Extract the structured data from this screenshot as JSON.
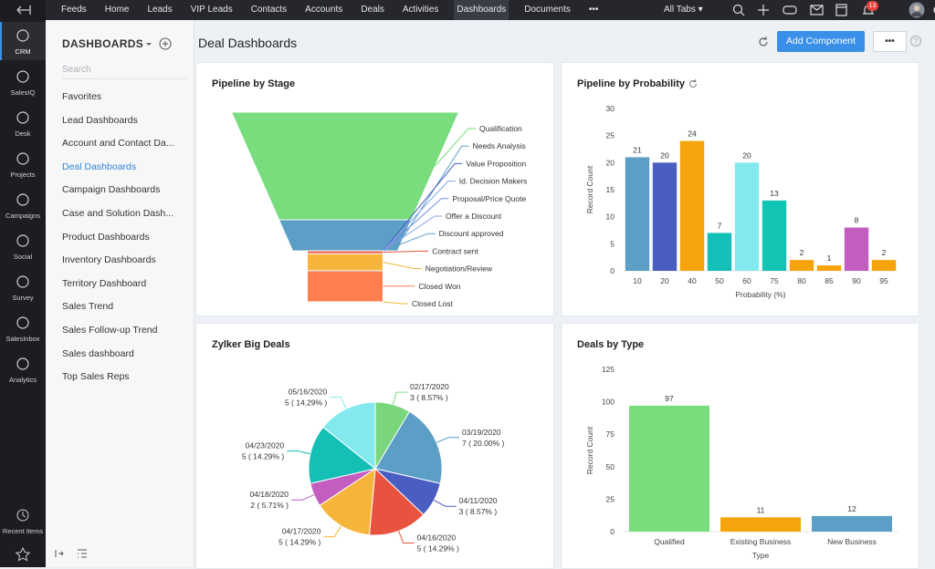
{
  "sidebar": {
    "items": [
      "CRM",
      "SalesIQ",
      "Desk",
      "Projects",
      "Campaigns",
      "Social",
      "Survey",
      "SalesInbox",
      "Analytics"
    ],
    "active_item": 0,
    "recent": "Recent Items"
  },
  "topnav": {
    "tabs": [
      "Feeds",
      "Home",
      "Leads",
      "VIP Leads",
      "Contacts",
      "Accounts",
      "Deals",
      "Activities",
      "Dashboards",
      "Documents",
      "•••"
    ],
    "active_tab": 8,
    "all_tabs": "All Tabs",
    "notifications": "13"
  },
  "panel": {
    "title": "DASHBOARDS",
    "search": "Search",
    "active_item": 3,
    "items": [
      "Favorites",
      "Lead Dashboards",
      "Account and Contact Da...",
      "Deal Dashboards",
      "Campaign Dashboards",
      "Case and Solution Dash...",
      "Product Dashboards",
      "Inventory Dashboards",
      "Territory Dashboard",
      "Sales Trend",
      "Sales Follow-up Trend",
      "Sales dashboard",
      "Top Sales Reps"
    ]
  },
  "header": {
    "title": "Deal Dashboards",
    "add": "Add Component",
    "more": "•••"
  },
  "chart_data": [
    {
      "type": "funnel",
      "title": "Pipeline by Stage",
      "categories": [
        "Qualification",
        "Needs Analysis",
        "Value Proposition",
        "Id. Decision Makers",
        "Proposal/Price Quote",
        "Offer a Discount",
        "Discount approved",
        "Contract sent",
        "Negotiation/Review",
        "Closed Won",
        "Closed Lost"
      ],
      "values": [
        38,
        11,
        0,
        0,
        0,
        0,
        0,
        1,
        6,
        11,
        0
      ],
      "colors": [
        "#79dc7d",
        "#5b9ec6",
        "#4a5dc0",
        "#84a8e8",
        "#6f8fe0",
        "#8aa0e8",
        "#5b9ec6",
        "#e8533f",
        "#f5b53a",
        "#ff7e50",
        "#f5b53a"
      ]
    },
    {
      "type": "bar",
      "title": "Pipeline by Probability",
      "xlabel": "Probability (%)",
      "ylabel": "Record Count",
      "categories": [
        "10",
        "20",
        "40",
        "50",
        "60",
        "75",
        "80",
        "85",
        "90",
        "95"
      ],
      "values": [
        21,
        20,
        24,
        7,
        20,
        13,
        2,
        1,
        8,
        2
      ],
      "colors": [
        "#5b9ec6",
        "#4a5dc0",
        "#f5a40c",
        "#12c0b8",
        "#84e8ef",
        "#12c4b3",
        "#f5a40c",
        "#f5a40c",
        "#c35dbf",
        "#f5a40c"
      ],
      "ylim": [
        0,
        30
      ],
      "yticks": [
        0,
        5,
        10,
        15,
        20,
        25,
        30
      ],
      "grid": false
    },
    {
      "type": "pie",
      "title": "Zylker Big Deals",
      "categories": [
        "02/17/2020",
        "03/19/2020",
        "04/11/2020",
        "04/16/2020",
        "04/17/2020",
        "04/18/2020",
        "04/23/2020",
        "05/16/2020"
      ],
      "values": [
        3,
        7,
        3,
        5,
        5,
        2,
        5,
        5
      ],
      "value_labels": [
        "3 ( 8.57% )",
        "7 ( 20.00% )",
        "3 ( 8.57% )",
        "5 ( 14.29% )",
        "5 ( 14.29% )",
        "2 ( 5.71% )",
        "5 ( 14.29% )",
        "5 ( 14.29% )"
      ],
      "colors": [
        "#79d67c",
        "#5b9ec6",
        "#4a5dc0",
        "#e8533f",
        "#f5b53a",
        "#c35dbf",
        "#14bfb6",
        "#84e8ef"
      ]
    },
    {
      "type": "bar",
      "title": "Deals by Type",
      "xlabel": "Type",
      "ylabel": "Record Count",
      "categories": [
        "Qualified",
        "Existing Business",
        "New Business"
      ],
      "values": [
        97,
        11,
        12
      ],
      "colors": [
        "#79dc7d",
        "#f5a40c",
        "#5b9ec6"
      ],
      "ylim": [
        0,
        125
      ],
      "yticks": [
        0,
        25,
        50,
        75,
        100,
        125
      ],
      "grid": false
    }
  ]
}
